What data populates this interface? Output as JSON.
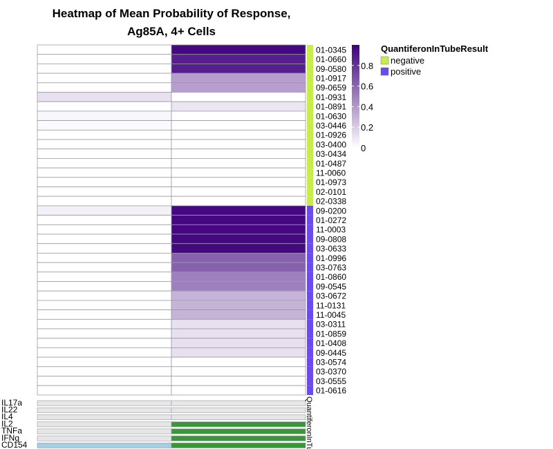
{
  "chart_data": {
    "type": "heatmap",
    "title_lines": [
      "Heatmap of Mean Probability of Response,",
      "Ag85A, 4+ Cells"
    ],
    "columns": 2,
    "rows": [
      {
        "id": "01-0345",
        "values": [
          0.0,
          0.97
        ],
        "group": "negative"
      },
      {
        "id": "01-0660",
        "values": [
          0.0,
          0.88
        ],
        "group": "negative"
      },
      {
        "id": "09-0580",
        "values": [
          0.0,
          0.88
        ],
        "group": "negative"
      },
      {
        "id": "01-0917",
        "values": [
          0.0,
          0.38
        ],
        "group": "negative"
      },
      {
        "id": "09-0659",
        "values": [
          0.0,
          0.38
        ],
        "group": "negative"
      },
      {
        "id": "01-0931",
        "values": [
          0.12,
          0.0
        ],
        "group": "negative"
      },
      {
        "id": "01-0891",
        "values": [
          0.0,
          0.1
        ],
        "group": "negative"
      },
      {
        "id": "01-0630",
        "values": [
          0.03,
          0.0
        ],
        "group": "negative"
      },
      {
        "id": "03-0446",
        "values": [
          0.02,
          0.0
        ],
        "group": "negative"
      },
      {
        "id": "01-0926",
        "values": [
          0.0,
          0.0
        ],
        "group": "negative"
      },
      {
        "id": "03-0400",
        "values": [
          0.0,
          0.0
        ],
        "group": "negative"
      },
      {
        "id": "03-0434",
        "values": [
          0.0,
          0.0
        ],
        "group": "negative"
      },
      {
        "id": "01-0487",
        "values": [
          0.0,
          0.0
        ],
        "group": "negative"
      },
      {
        "id": "11-0060",
        "values": [
          0.0,
          0.0
        ],
        "group": "negative"
      },
      {
        "id": "01-0973",
        "values": [
          0.0,
          0.0
        ],
        "group": "negative"
      },
      {
        "id": "02-0101",
        "values": [
          0.0,
          0.0
        ],
        "group": "negative"
      },
      {
        "id": "02-0338",
        "values": [
          0.0,
          0.0
        ],
        "group": "negative"
      },
      {
        "id": "09-0200",
        "values": [
          0.06,
          0.97
        ],
        "group": "positive"
      },
      {
        "id": "01-0272",
        "values": [
          0.0,
          0.97
        ],
        "group": "positive"
      },
      {
        "id": "11-0003",
        "values": [
          0.0,
          0.97
        ],
        "group": "positive"
      },
      {
        "id": "09-0808",
        "values": [
          0.0,
          0.97
        ],
        "group": "positive"
      },
      {
        "id": "03-0633",
        "values": [
          0.0,
          0.97
        ],
        "group": "positive"
      },
      {
        "id": "01-0996",
        "values": [
          0.0,
          0.62
        ],
        "group": "positive"
      },
      {
        "id": "03-0763",
        "values": [
          0.0,
          0.62
        ],
        "group": "positive"
      },
      {
        "id": "01-0860",
        "values": [
          0.0,
          0.5
        ],
        "group": "positive"
      },
      {
        "id": "09-0545",
        "values": [
          0.0,
          0.5
        ],
        "group": "positive"
      },
      {
        "id": "03-0672",
        "values": [
          0.0,
          0.3
        ],
        "group": "positive"
      },
      {
        "id": "11-0131",
        "values": [
          0.0,
          0.3
        ],
        "group": "positive"
      },
      {
        "id": "11-0045",
        "values": [
          0.0,
          0.3
        ],
        "group": "positive"
      },
      {
        "id": "03-0311",
        "values": [
          0.0,
          0.12
        ],
        "group": "positive"
      },
      {
        "id": "01-0859",
        "values": [
          0.0,
          0.12
        ],
        "group": "positive"
      },
      {
        "id": "01-0408",
        "values": [
          0.0,
          0.12
        ],
        "group": "positive"
      },
      {
        "id": "09-0445",
        "values": [
          0.0,
          0.12
        ],
        "group": "positive"
      },
      {
        "id": "03-0574",
        "values": [
          0.0,
          0.0
        ],
        "group": "positive"
      },
      {
        "id": "03-0370",
        "values": [
          0.0,
          0.0
        ],
        "group": "positive"
      },
      {
        "id": "03-0555",
        "values": [
          0.0,
          0.0
        ],
        "group": "positive"
      },
      {
        "id": "01-0616",
        "values": [
          0.0,
          0.0
        ],
        "group": "positive"
      }
    ],
    "color_scale": {
      "min": 0,
      "max": 1,
      "low_color": "#ffffff",
      "high_color": "#3f007d",
      "ticks": [
        {
          "value": 0,
          "label": "0"
        },
        {
          "value": 0.2,
          "label": "0.2"
        },
        {
          "value": 0.4,
          "label": "0.4"
        },
        {
          "value": 0.6,
          "label": "0.6"
        },
        {
          "value": 0.8,
          "label": "0.8"
        }
      ]
    },
    "group_annotation": {
      "title": "QuantiferonInTubeResult",
      "axis_label": "QuantiferonInTu",
      "categories": [
        {
          "name": "negative",
          "color": "#c8ed4a"
        },
        {
          "name": "positive",
          "color": "#6c4bec"
        }
      ]
    },
    "cytokines": [
      {
        "name": "IL17a",
        "values": [
          "absent",
          "absent"
        ]
      },
      {
        "name": "IL22",
        "values": [
          "absent",
          "absent"
        ]
      },
      {
        "name": "IL4",
        "values": [
          "absent",
          "absent"
        ]
      },
      {
        "name": "IL2",
        "values": [
          "absent",
          "present"
        ]
      },
      {
        "name": "TNFa",
        "values": [
          "absent",
          "present"
        ]
      },
      {
        "name": "IFNg",
        "values": [
          "absent",
          "present"
        ]
      },
      {
        "name": "CD154",
        "values": [
          "present-alt",
          "present"
        ]
      }
    ],
    "cytokine_colors": {
      "absent": "#e6e6e6",
      "present": "#359a35",
      "present-alt": "#a6cee3"
    }
  }
}
